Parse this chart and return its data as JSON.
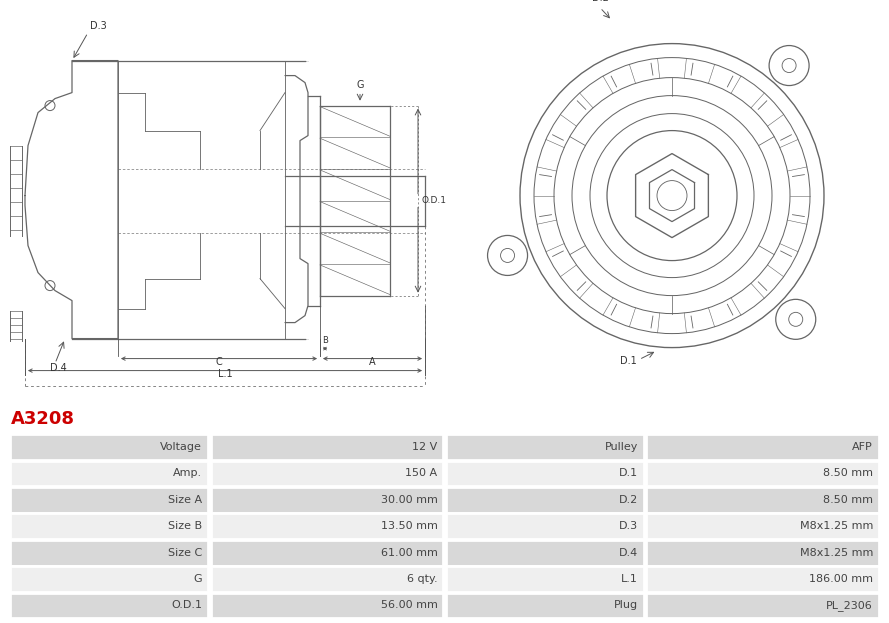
{
  "title": "A3208",
  "title_color": "#cc0000",
  "title_fontsize": 13,
  "background_color": "#ffffff",
  "table_row_bg_dark": "#d8d8d8",
  "table_row_bg_light": "#efefef",
  "table_border_color": "#ffffff",
  "rows": [
    [
      "Voltage",
      "12 V",
      "Pulley",
      "AFP"
    ],
    [
      "Amp.",
      "150 A",
      "D.1",
      "8.50 mm"
    ],
    [
      "Size A",
      "30.00 mm",
      "D.2",
      "8.50 mm"
    ],
    [
      "Size B",
      "13.50 mm",
      "D.3",
      "M8x1.25 mm"
    ],
    [
      "Size C",
      "61.00 mm",
      "D.4",
      "M8x1.25 mm"
    ],
    [
      "G",
      "6 qty.",
      "L.1",
      "186.00 mm"
    ],
    [
      "O.D.1",
      "56.00 mm",
      "Plug",
      "PL_2306"
    ]
  ],
  "lc": "#666666",
  "lc_dim": "#555555",
  "lw": 0.9
}
